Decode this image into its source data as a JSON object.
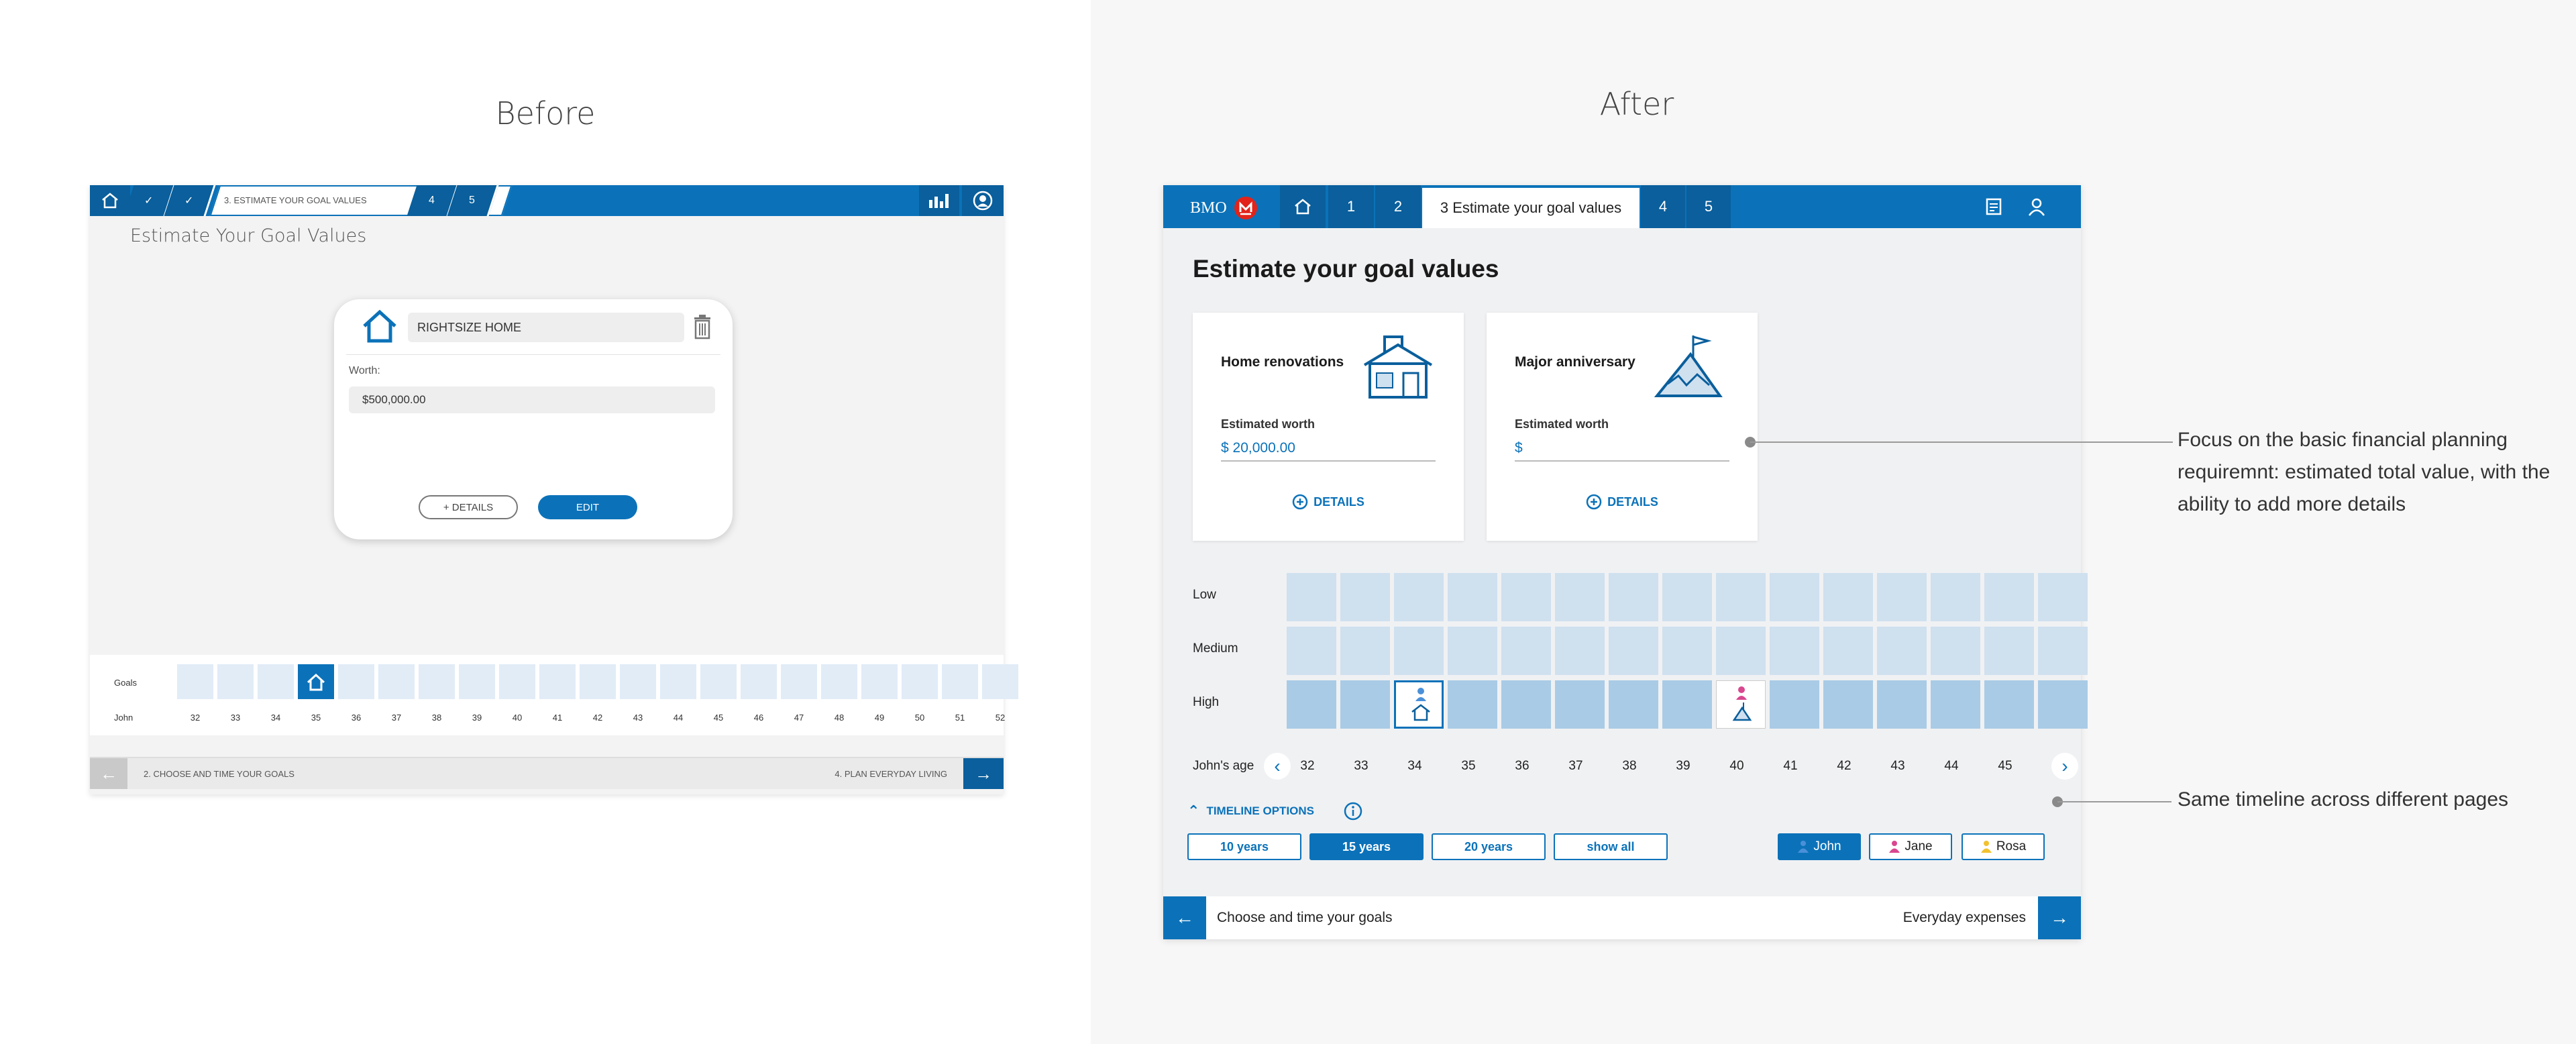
{
  "headings": {
    "before": "Before",
    "after": "After"
  },
  "before": {
    "nav": {
      "step3_label": "3. ESTIMATE YOUR GOAL VALUES",
      "step4": "4",
      "step5": "5"
    },
    "page_title": "Estimate Your Goal Values",
    "card": {
      "goal_name": "RIGHTSIZE HOME",
      "worth_label": "Worth:",
      "worth_value": "$500,000.00",
      "details_button": "+ DETAILS",
      "edit_button": "EDIT"
    },
    "timeline": {
      "row_label": "Goals",
      "person_label": "John",
      "ages": [
        "32",
        "33",
        "34",
        "35",
        "36",
        "37",
        "38",
        "39",
        "40",
        "41",
        "42",
        "43",
        "44",
        "45",
        "46",
        "47",
        "48",
        "49",
        "50",
        "51",
        "52"
      ],
      "active_age": "35"
    },
    "footer": {
      "prev_label": "2. CHOOSE AND TIME YOUR GOALS",
      "next_label": "4. PLAN EVERYDAY LIVING"
    }
  },
  "after": {
    "nav": {
      "brand": "BMO",
      "step1": "1",
      "step2": "2",
      "step3_label": "3 Estimate your goal values",
      "step4": "4",
      "step5": "5"
    },
    "page_title": "Estimate your goal values",
    "cards": [
      {
        "name": "Home renovations",
        "worth_label": "Estimated worth",
        "worth_value": "$ 20,000.00",
        "details": "DETAILS"
      },
      {
        "name": "Major anniversary",
        "worth_label": "Estimated worth",
        "worth_value": "$",
        "details": "DETAILS"
      }
    ],
    "rows": [
      "Low",
      "Medium",
      "High"
    ],
    "age_label": "John's age",
    "ages": [
      "32",
      "33",
      "34",
      "35",
      "36",
      "37",
      "38",
      "39",
      "40",
      "41",
      "42",
      "43",
      "44",
      "45"
    ],
    "timeline_options": {
      "label": "TIMELINE OPTIONS",
      "buttons": [
        "10 years",
        "15 years",
        "20 years",
        "show all"
      ],
      "selected": "15 years"
    },
    "people": [
      "John",
      "Jane",
      "Rosa"
    ],
    "people_colors": {
      "John": "#4a90d9",
      "Jane": "#d9478f",
      "Rosa": "#f2c12e"
    },
    "footer": {
      "prev_label": "Choose and time your goals",
      "next_label": "Everyday expenses"
    }
  },
  "annotations": {
    "first": "Focus on the basic financial planning requiremnt: estimated total value, with the ability to add more details",
    "second": "Same timeline across different pages"
  },
  "colors": {
    "brand_blue": "#0b72b9",
    "cell_light": "#cfe0ef",
    "cell_high": "#a9cbe6"
  }
}
